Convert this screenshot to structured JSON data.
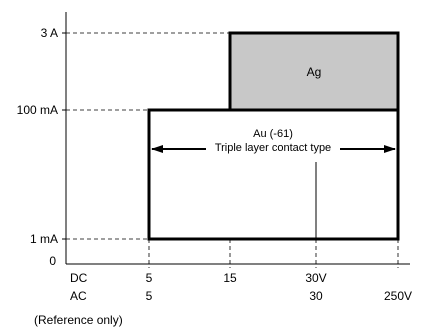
{
  "chart_data": {
    "type": "area",
    "title": "",
    "xlabel": "",
    "ylabel": "",
    "y_ticks": [
      {
        "label": "3 A",
        "value": 3
      },
      {
        "label": "100 mA",
        "value": 0.1
      },
      {
        "label": "1 mA",
        "value": 0.001
      },
      {
        "label": "0",
        "value": 0
      }
    ],
    "x_rows": [
      {
        "label": "DC",
        "ticks": [
          {
            "label": "5",
            "value": 5
          },
          {
            "label": "15",
            "value": 15
          },
          {
            "label": "30V",
            "value": 30
          }
        ]
      },
      {
        "label": "AC",
        "ticks": [
          {
            "label": "5",
            "value": 5
          },
          {
            "label": "30",
            "value": 30
          },
          {
            "label": "250V",
            "value": 250
          }
        ]
      }
    ],
    "regions": [
      {
        "name": "Ag",
        "voltage_range": [
          15,
          250
        ],
        "current_range": [
          0.1,
          3
        ],
        "fill": "#c8c8c8"
      },
      {
        "name": "Au (-61)",
        "description": "Triple layer contact type",
        "voltage_range": [
          5,
          250
        ],
        "current_range": [
          0.001,
          0.1
        ],
        "fill": "#ffffff"
      }
    ],
    "guides": [
      {
        "voltage": 30,
        "current_range": [
          0.001,
          0.1
        ]
      }
    ],
    "note": "(Reference only)"
  }
}
